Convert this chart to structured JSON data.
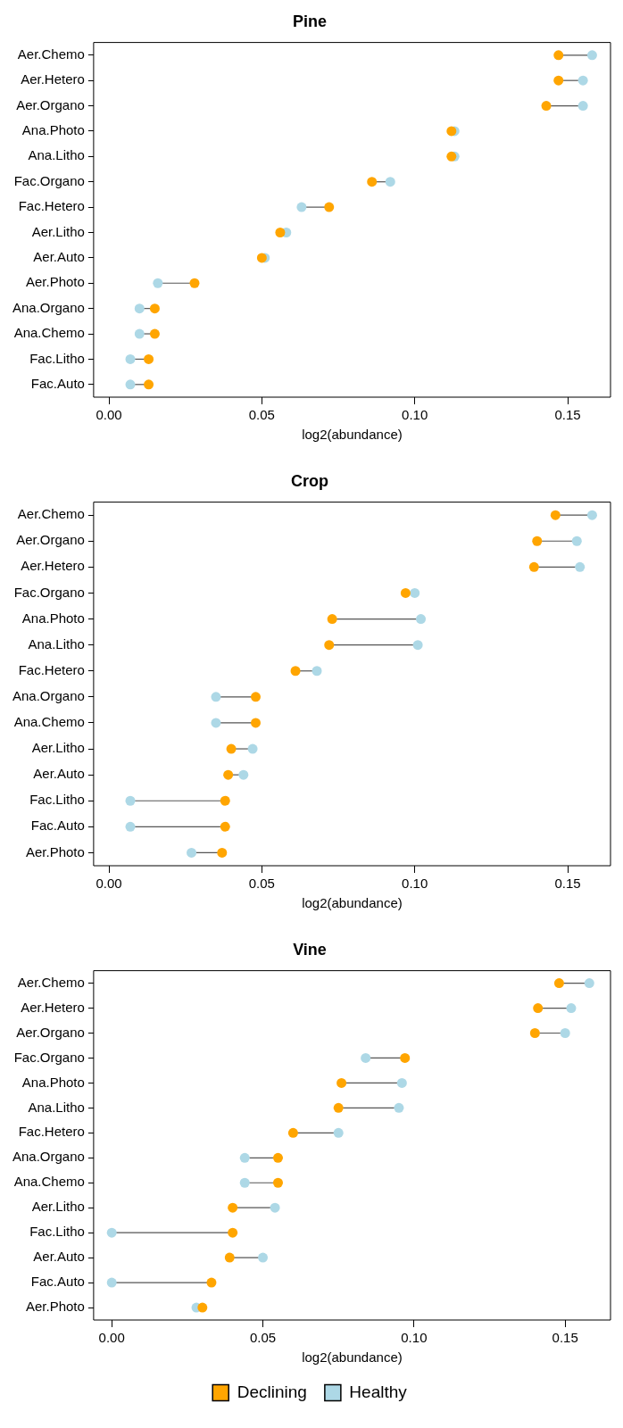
{
  "chart_data": [
    {
      "type": "scatter",
      "orientation": "horizontal",
      "title": "Pine",
      "xlabel": "log2(abundance)",
      "marker": "circle",
      "grid": false,
      "legend": false,
      "categories": [
        "Aer.Chemo",
        "Aer.Hetero",
        "Aer.Organo",
        "Ana.Photo",
        "Ana.Litho",
        "Fac.Organo",
        "Fac.Hetero",
        "Aer.Litho",
        "Aer.Auto",
        "Aer.Photo",
        "Ana.Organo",
        "Ana.Chemo",
        "Fac.Litho",
        "Fac.Auto"
      ],
      "xlim": [
        -0.005,
        0.164
      ],
      "xticks": [
        {
          "value": 0,
          "label": "0.00"
        },
        {
          "value": 0.05,
          "label": "0.05"
        },
        {
          "value": 0.1,
          "label": "0.10"
        },
        {
          "value": 0.15,
          "label": "0.15"
        }
      ],
      "series": [
        {
          "color": "#ffa500",
          "values": [
            0.147,
            0.147,
            0.143,
            0.112,
            0.112,
            0.086,
            0.072,
            0.056,
            0.05,
            0.028,
            0.015,
            0.015,
            0.013,
            0.013
          ]
        },
        {
          "color": "#add8e6",
          "values": [
            0.158,
            0.155,
            0.155,
            0.113,
            0.113,
            0.092,
            0.063,
            0.058,
            0.051,
            0.016,
            0.01,
            0.01,
            0.007,
            0.007
          ]
        }
      ]
    },
    {
      "type": "scatter",
      "orientation": "horizontal",
      "title": "Crop",
      "xlabel": "log2(abundance)",
      "marker": "circle",
      "grid": false,
      "legend": false,
      "categories": [
        "Aer.Chemo",
        "Aer.Organo",
        "Aer.Hetero",
        "Fac.Organo",
        "Ana.Photo",
        "Ana.Litho",
        "Fac.Hetero",
        "Ana.Organo",
        "Ana.Chemo",
        "Aer.Litho",
        "Aer.Auto",
        "Fac.Litho",
        "Fac.Auto",
        "Aer.Photo"
      ],
      "xlim": [
        -0.005,
        0.164
      ],
      "xticks": [
        {
          "value": 0,
          "label": "0.00"
        },
        {
          "value": 0.05,
          "label": "0.05"
        },
        {
          "value": 0.1,
          "label": "0.10"
        },
        {
          "value": 0.15,
          "label": "0.15"
        }
      ],
      "series": [
        {
          "color": "#ffa500",
          "values": [
            0.146,
            0.14,
            0.139,
            0.097,
            0.073,
            0.072,
            0.061,
            0.048,
            0.048,
            0.04,
            0.039,
            0.038,
            0.038,
            0.037
          ]
        },
        {
          "color": "#add8e6",
          "values": [
            0.158,
            0.153,
            0.154,
            0.1,
            0.102,
            0.101,
            0.068,
            0.035,
            0.035,
            0.047,
            0.044,
            0.007,
            0.007,
            0.027
          ]
        }
      ]
    },
    {
      "type": "scatter",
      "orientation": "horizontal",
      "title": "Vine",
      "xlabel": "log2(abundance)",
      "marker": "circle",
      "grid": false,
      "legend": "bottom",
      "categories": [
        "Aer.Chemo",
        "Aer.Hetero",
        "Aer.Organo",
        "Fac.Organo",
        "Ana.Photo",
        "Ana.Litho",
        "Fac.Hetero",
        "Ana.Organo",
        "Ana.Chemo",
        "Aer.Litho",
        "Fac.Litho",
        "Aer.Auto",
        "Fac.Auto",
        "Aer.Photo"
      ],
      "xlim": [
        -0.006,
        0.165
      ],
      "xticks": [
        {
          "value": 0,
          "label": "0.00"
        },
        {
          "value": 0.05,
          "label": "0.05"
        },
        {
          "value": 0.1,
          "label": "0.10"
        },
        {
          "value": 0.15,
          "label": "0.15"
        }
      ],
      "series": [
        {
          "name": "Declining",
          "color": "#ffa500",
          "values": [
            0.148,
            0.141,
            0.14,
            0.097,
            0.076,
            0.075,
            0.06,
            0.055,
            0.055,
            0.04,
            0.04,
            0.039,
            0.033,
            0.03
          ]
        },
        {
          "name": "Healthy",
          "color": "#add8e6",
          "values": [
            0.158,
            0.152,
            0.15,
            0.084,
            0.096,
            0.095,
            0.075,
            0.044,
            0.044,
            0.054,
            0.0,
            0.05,
            0.0,
            0.028
          ]
        }
      ]
    }
  ]
}
